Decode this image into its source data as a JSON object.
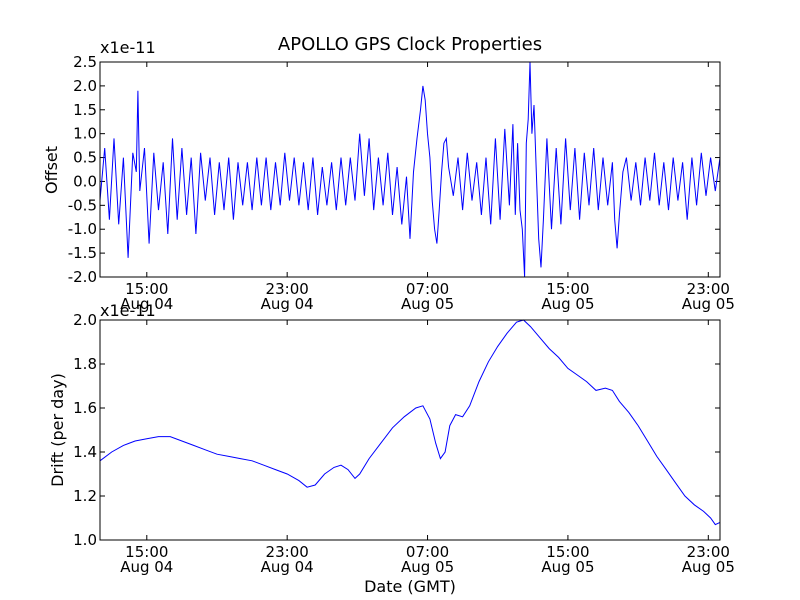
{
  "figure": {
    "title": "APOLLO GPS Clock Properties"
  },
  "chart_data": [
    {
      "type": "line",
      "title": "APOLLO GPS Clock Properties",
      "xlabel": "",
      "ylabel": "Offset",
      "offset_text": "x1e-11",
      "ylim": [
        -2.0,
        2.5
      ],
      "xlim_hours": [
        12,
        38.5
      ],
      "yticks": [
        -2.0,
        -1.5,
        -1.0,
        -0.5,
        0.0,
        0.5,
        1.0,
        1.5,
        2.0,
        2.5
      ],
      "ytick_labels": [
        "-2.0",
        "-1.5",
        "-1.0",
        "-0.5",
        "0.0",
        "0.5",
        "1.0",
        "1.5",
        "2.0",
        "2.5"
      ],
      "xticks": [
        {
          "hours": 14,
          "time": "15:00",
          "date": "Aug 04"
        },
        {
          "hours": 20,
          "time": "23:00",
          "date": "Aug 04"
        },
        {
          "hours": 26,
          "time": "07:00",
          "date": "Aug 05"
        },
        {
          "hours": 32,
          "time": "15:00",
          "date": "Aug 05"
        },
        {
          "hours": 38,
          "time": "23:00",
          "date": "Aug 05"
        }
      ],
      "color": "#0000ff",
      "grid": false,
      "series": [
        {
          "values": [
            {
              "x": 12.0,
              "y": -0.4
            },
            {
              "x": 12.2,
              "y": 0.7
            },
            {
              "x": 12.4,
              "y": -0.8
            },
            {
              "x": 12.6,
              "y": 0.9
            },
            {
              "x": 12.8,
              "y": -0.9
            },
            {
              "x": 13.0,
              "y": 0.5
            },
            {
              "x": 13.2,
              "y": -1.6
            },
            {
              "x": 13.4,
              "y": 0.6
            },
            {
              "x": 13.55,
              "y": 0.2
            },
            {
              "x": 13.62,
              "y": 1.9
            },
            {
              "x": 13.7,
              "y": -0.2
            },
            {
              "x": 13.9,
              "y": 0.7
            },
            {
              "x": 14.1,
              "y": -1.3
            },
            {
              "x": 14.3,
              "y": 0.6
            },
            {
              "x": 14.5,
              "y": -0.6
            },
            {
              "x": 14.7,
              "y": 0.4
            },
            {
              "x": 14.9,
              "y": -1.1
            },
            {
              "x": 15.1,
              "y": 0.9
            },
            {
              "x": 15.3,
              "y": -0.8
            },
            {
              "x": 15.5,
              "y": 0.7
            },
            {
              "x": 15.7,
              "y": -0.7
            },
            {
              "x": 15.9,
              "y": 0.5
            },
            {
              "x": 16.1,
              "y": -1.1
            },
            {
              "x": 16.3,
              "y": 0.6
            },
            {
              "x": 16.5,
              "y": -0.4
            },
            {
              "x": 16.7,
              "y": 0.5
            },
            {
              "x": 16.9,
              "y": -0.7
            },
            {
              "x": 17.1,
              "y": 0.4
            },
            {
              "x": 17.3,
              "y": -0.6
            },
            {
              "x": 17.5,
              "y": 0.5
            },
            {
              "x": 17.7,
              "y": -0.8
            },
            {
              "x": 17.9,
              "y": 0.4
            },
            {
              "x": 18.1,
              "y": -0.5
            },
            {
              "x": 18.3,
              "y": 0.4
            },
            {
              "x": 18.5,
              "y": -0.6
            },
            {
              "x": 18.7,
              "y": 0.5
            },
            {
              "x": 18.9,
              "y": -0.5
            },
            {
              "x": 19.1,
              "y": 0.5
            },
            {
              "x": 19.3,
              "y": -0.6
            },
            {
              "x": 19.5,
              "y": 0.4
            },
            {
              "x": 19.7,
              "y": -0.5
            },
            {
              "x": 19.9,
              "y": 0.6
            },
            {
              "x": 20.1,
              "y": -0.4
            },
            {
              "x": 20.3,
              "y": 0.5
            },
            {
              "x": 20.5,
              "y": -0.5
            },
            {
              "x": 20.7,
              "y": 0.4
            },
            {
              "x": 20.9,
              "y": -0.6
            },
            {
              "x": 21.1,
              "y": 0.5
            },
            {
              "x": 21.3,
              "y": -0.7
            },
            {
              "x": 21.5,
              "y": 0.3
            },
            {
              "x": 21.7,
              "y": -0.5
            },
            {
              "x": 21.9,
              "y": 0.4
            },
            {
              "x": 22.1,
              "y": -0.6
            },
            {
              "x": 22.3,
              "y": 0.5
            },
            {
              "x": 22.5,
              "y": -0.5
            },
            {
              "x": 22.7,
              "y": 0.5
            },
            {
              "x": 22.9,
              "y": -0.4
            },
            {
              "x": 23.1,
              "y": 1.0
            },
            {
              "x": 23.3,
              "y": -0.3
            },
            {
              "x": 23.5,
              "y": 0.9
            },
            {
              "x": 23.7,
              "y": -0.6
            },
            {
              "x": 23.9,
              "y": 0.5
            },
            {
              "x": 24.1,
              "y": -0.5
            },
            {
              "x": 24.3,
              "y": 0.6
            },
            {
              "x": 24.5,
              "y": -0.7
            },
            {
              "x": 24.7,
              "y": 0.3
            },
            {
              "x": 24.9,
              "y": -0.9
            },
            {
              "x": 25.1,
              "y": 0.1
            },
            {
              "x": 25.25,
              "y": -1.2
            },
            {
              "x": 25.4,
              "y": 0.2
            },
            {
              "x": 25.55,
              "y": 0.9
            },
            {
              "x": 25.7,
              "y": 1.5
            },
            {
              "x": 25.8,
              "y": 2.0
            },
            {
              "x": 25.9,
              "y": 1.7
            },
            {
              "x": 26.0,
              "y": 1.0
            },
            {
              "x": 26.1,
              "y": 0.5
            },
            {
              "x": 26.2,
              "y": -0.4
            },
            {
              "x": 26.3,
              "y": -1.0
            },
            {
              "x": 26.4,
              "y": -1.3
            },
            {
              "x": 26.5,
              "y": -0.6
            },
            {
              "x": 26.6,
              "y": 0.2
            },
            {
              "x": 26.7,
              "y": 0.8
            },
            {
              "x": 26.8,
              "y": 0.9
            },
            {
              "x": 26.9,
              "y": 0.3
            },
            {
              "x": 27.1,
              "y": -0.3
            },
            {
              "x": 27.3,
              "y": 0.5
            },
            {
              "x": 27.5,
              "y": -0.6
            },
            {
              "x": 27.7,
              "y": 0.6
            },
            {
              "x": 27.9,
              "y": -0.4
            },
            {
              "x": 28.1,
              "y": 0.4
            },
            {
              "x": 28.3,
              "y": -0.7
            },
            {
              "x": 28.5,
              "y": 0.5
            },
            {
              "x": 28.7,
              "y": -0.9
            },
            {
              "x": 28.9,
              "y": 0.9
            },
            {
              "x": 29.1,
              "y": -0.8
            },
            {
              "x": 29.3,
              "y": 1.1
            },
            {
              "x": 29.5,
              "y": -0.5
            },
            {
              "x": 29.65,
              "y": 1.2
            },
            {
              "x": 29.75,
              "y": -0.7
            },
            {
              "x": 29.85,
              "y": 0.8
            },
            {
              "x": 29.95,
              "y": -0.6
            },
            {
              "x": 30.05,
              "y": -1.0
            },
            {
              "x": 30.15,
              "y": -2.0
            },
            {
              "x": 30.22,
              "y": 0.8
            },
            {
              "x": 30.3,
              "y": 1.3
            },
            {
              "x": 30.38,
              "y": 2.5
            },
            {
              "x": 30.46,
              "y": 1.0
            },
            {
              "x": 30.55,
              "y": 1.6
            },
            {
              "x": 30.65,
              "y": 0.2
            },
            {
              "x": 30.75,
              "y": -1.2
            },
            {
              "x": 30.85,
              "y": -1.8
            },
            {
              "x": 30.95,
              "y": -0.8
            },
            {
              "x": 31.1,
              "y": 0.9
            },
            {
              "x": 31.3,
              "y": -1.0
            },
            {
              "x": 31.5,
              "y": 0.7
            },
            {
              "x": 31.7,
              "y": -0.9
            },
            {
              "x": 31.9,
              "y": 0.9
            },
            {
              "x": 32.1,
              "y": -0.6
            },
            {
              "x": 32.3,
              "y": 0.7
            },
            {
              "x": 32.5,
              "y": -0.8
            },
            {
              "x": 32.7,
              "y": 0.6
            },
            {
              "x": 32.9,
              "y": -0.5
            },
            {
              "x": 33.1,
              "y": 0.7
            },
            {
              "x": 33.3,
              "y": -0.6
            },
            {
              "x": 33.5,
              "y": 0.5
            },
            {
              "x": 33.7,
              "y": -0.5
            },
            {
              "x": 33.9,
              "y": 0.4
            },
            {
              "x": 34.0,
              "y": -0.8
            },
            {
              "x": 34.1,
              "y": -1.4
            },
            {
              "x": 34.2,
              "y": -0.7
            },
            {
              "x": 34.35,
              "y": 0.2
            },
            {
              "x": 34.5,
              "y": 0.5
            },
            {
              "x": 34.7,
              "y": -0.4
            },
            {
              "x": 34.9,
              "y": 0.4
            },
            {
              "x": 35.1,
              "y": -0.5
            },
            {
              "x": 35.3,
              "y": 0.5
            },
            {
              "x": 35.5,
              "y": -0.4
            },
            {
              "x": 35.7,
              "y": 0.6
            },
            {
              "x": 35.9,
              "y": -0.5
            },
            {
              "x": 36.1,
              "y": 0.4
            },
            {
              "x": 36.3,
              "y": -0.6
            },
            {
              "x": 36.5,
              "y": 0.5
            },
            {
              "x": 36.7,
              "y": -0.4
            },
            {
              "x": 36.9,
              "y": 0.4
            },
            {
              "x": 37.1,
              "y": -0.8
            },
            {
              "x": 37.3,
              "y": 0.5
            },
            {
              "x": 37.5,
              "y": -0.5
            },
            {
              "x": 37.7,
              "y": 0.6
            },
            {
              "x": 37.9,
              "y": -0.3
            },
            {
              "x": 38.1,
              "y": 0.5
            },
            {
              "x": 38.3,
              "y": -0.2
            },
            {
              "x": 38.5,
              "y": 0.5
            }
          ]
        }
      ]
    },
    {
      "type": "line",
      "title": "",
      "xlabel": "Date (GMT)",
      "ylabel": "Drift (per day)",
      "offset_text": "x1e-11",
      "ylim": [
        1.0,
        2.0
      ],
      "xlim_hours": [
        12,
        38.5
      ],
      "yticks": [
        1.0,
        1.2,
        1.4,
        1.6,
        1.8,
        2.0
      ],
      "ytick_labels": [
        "1.0",
        "1.2",
        "1.4",
        "1.6",
        "1.8",
        "2.0"
      ],
      "xticks": [
        {
          "hours": 14,
          "time": "15:00",
          "date": "Aug 04"
        },
        {
          "hours": 20,
          "time": "23:00",
          "date": "Aug 04"
        },
        {
          "hours": 26,
          "time": "07:00",
          "date": "Aug 05"
        },
        {
          "hours": 32,
          "time": "15:00",
          "date": "Aug 05"
        },
        {
          "hours": 38,
          "time": "23:00",
          "date": "Aug 05"
        }
      ],
      "color": "#0000ff",
      "grid": false,
      "series": [
        {
          "values": [
            {
              "x": 12.0,
              "y": 1.36
            },
            {
              "x": 12.5,
              "y": 1.4
            },
            {
              "x": 13.0,
              "y": 1.43
            },
            {
              "x": 13.5,
              "y": 1.45
            },
            {
              "x": 14.0,
              "y": 1.46
            },
            {
              "x": 14.5,
              "y": 1.47
            },
            {
              "x": 15.0,
              "y": 1.47
            },
            {
              "x": 15.5,
              "y": 1.45
            },
            {
              "x": 16.0,
              "y": 1.43
            },
            {
              "x": 16.5,
              "y": 1.41
            },
            {
              "x": 17.0,
              "y": 1.39
            },
            {
              "x": 17.5,
              "y": 1.38
            },
            {
              "x": 18.0,
              "y": 1.37
            },
            {
              "x": 18.5,
              "y": 1.36
            },
            {
              "x": 19.0,
              "y": 1.34
            },
            {
              "x": 19.5,
              "y": 1.32
            },
            {
              "x": 20.0,
              "y": 1.3
            },
            {
              "x": 20.5,
              "y": 1.27
            },
            {
              "x": 20.85,
              "y": 1.24
            },
            {
              "x": 21.2,
              "y": 1.25
            },
            {
              "x": 21.6,
              "y": 1.3
            },
            {
              "x": 22.0,
              "y": 1.33
            },
            {
              "x": 22.3,
              "y": 1.34
            },
            {
              "x": 22.6,
              "y": 1.32
            },
            {
              "x": 22.9,
              "y": 1.28
            },
            {
              "x": 23.1,
              "y": 1.3
            },
            {
              "x": 23.5,
              "y": 1.37
            },
            {
              "x": 24.0,
              "y": 1.44
            },
            {
              "x": 24.5,
              "y": 1.51
            },
            {
              "x": 25.0,
              "y": 1.56
            },
            {
              "x": 25.5,
              "y": 1.6
            },
            {
              "x": 25.8,
              "y": 1.61
            },
            {
              "x": 26.1,
              "y": 1.55
            },
            {
              "x": 26.35,
              "y": 1.44
            },
            {
              "x": 26.55,
              "y": 1.37
            },
            {
              "x": 26.75,
              "y": 1.4
            },
            {
              "x": 26.95,
              "y": 1.52
            },
            {
              "x": 27.2,
              "y": 1.57
            },
            {
              "x": 27.5,
              "y": 1.56
            },
            {
              "x": 27.8,
              "y": 1.61
            },
            {
              "x": 28.2,
              "y": 1.72
            },
            {
              "x": 28.6,
              "y": 1.81
            },
            {
              "x": 29.0,
              "y": 1.88
            },
            {
              "x": 29.4,
              "y": 1.94
            },
            {
              "x": 29.8,
              "y": 1.99
            },
            {
              "x": 30.1,
              "y": 2.0
            },
            {
              "x": 30.4,
              "y": 1.97
            },
            {
              "x": 30.8,
              "y": 1.92
            },
            {
              "x": 31.2,
              "y": 1.87
            },
            {
              "x": 31.6,
              "y": 1.83
            },
            {
              "x": 32.0,
              "y": 1.78
            },
            {
              "x": 32.4,
              "y": 1.75
            },
            {
              "x": 32.8,
              "y": 1.72
            },
            {
              "x": 33.2,
              "y": 1.68
            },
            {
              "x": 33.6,
              "y": 1.69
            },
            {
              "x": 33.9,
              "y": 1.68
            },
            {
              "x": 34.2,
              "y": 1.63
            },
            {
              "x": 34.6,
              "y": 1.58
            },
            {
              "x": 35.0,
              "y": 1.52
            },
            {
              "x": 35.4,
              "y": 1.45
            },
            {
              "x": 35.8,
              "y": 1.38
            },
            {
              "x": 36.2,
              "y": 1.32
            },
            {
              "x": 36.6,
              "y": 1.26
            },
            {
              "x": 37.0,
              "y": 1.2
            },
            {
              "x": 37.4,
              "y": 1.16
            },
            {
              "x": 37.8,
              "y": 1.13
            },
            {
              "x": 38.1,
              "y": 1.1
            },
            {
              "x": 38.3,
              "y": 1.07
            },
            {
              "x": 38.5,
              "y": 1.08
            }
          ]
        }
      ]
    }
  ]
}
